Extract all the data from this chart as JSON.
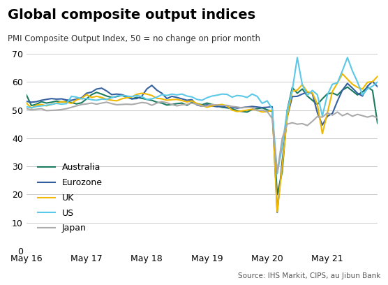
{
  "title": "Global composite output indices",
  "subtitle": "PMI Composite Output Index, 50 = no change on prior month",
  "source": "Source: IHS Markit, CIPS, au Jibun Bank",
  "ylabel": "",
  "xlabel": "",
  "ylim": [
    0,
    70
  ],
  "yticks": [
    0,
    10,
    20,
    30,
    40,
    50,
    60,
    70
  ],
  "xtick_labels": [
    "May 16",
    "May 17",
    "May 18",
    "May 19",
    "May 20",
    "May 21"
  ],
  "xtick_positions": [
    0,
    12,
    24,
    36,
    48,
    60
  ],
  "colors": {
    "Australia": "#1a7a5e",
    "Eurozone": "#3560a0",
    "UK": "#f0b800",
    "US": "#5bc8e8",
    "Japan": "#aaaaaa"
  },
  "series": {
    "Australia": [
      55.4,
      51.6,
      52.1,
      53.0,
      52.5,
      52.8,
      53.2,
      52.9,
      53.1,
      52.7,
      52.2,
      52.6,
      54.0,
      55.5,
      56.3,
      55.7,
      55.0,
      54.5,
      54.8,
      55.2,
      54.6,
      54.0,
      54.5,
      54.2,
      53.8,
      53.5,
      52.8,
      52.5,
      51.8,
      52.0,
      52.3,
      52.5,
      51.7,
      52.8,
      52.3,
      51.9,
      52.5,
      52.0,
      51.5,
      51.0,
      50.8,
      50.5,
      49.8,
      49.5,
      49.3,
      50.2,
      50.5,
      50.8,
      50.1,
      49.5,
      20.0,
      28.0,
      50.0,
      58.0,
      56.0,
      57.5,
      55.0,
      53.5,
      52.0,
      54.0,
      55.8,
      56.1,
      55.3,
      57.1,
      58.2,
      56.8,
      55.4,
      56.5,
      58.2,
      57.0,
      45.3
    ],
    "Eurozone": [
      53.1,
      52.8,
      53.0,
      53.5,
      53.8,
      54.1,
      53.9,
      54.0,
      53.6,
      53.5,
      53.9,
      54.4,
      56.0,
      56.4,
      57.5,
      57.8,
      56.8,
      55.5,
      55.7,
      55.5,
      54.9,
      54.0,
      54.1,
      54.9,
      57.5,
      58.8,
      57.1,
      56.0,
      54.1,
      54.9,
      54.5,
      54.0,
      53.5,
      53.7,
      51.8,
      51.4,
      51.9,
      51.5,
      51.2,
      51.4,
      50.9,
      51.0,
      50.7,
      50.9,
      51.1,
      51.3,
      51.1,
      50.9,
      51.0,
      51.2,
      13.6,
      31.9,
      47.5,
      54.8,
      54.9,
      55.7,
      56.4,
      55.9,
      49.1,
      44.7,
      47.8,
      48.8,
      53.2,
      57.1,
      59.5,
      57.8,
      56.0,
      55.0,
      58.5,
      60.2,
      58.3
    ],
    "UK": [
      52.5,
      50.7,
      51.8,
      52.0,
      51.5,
      52.0,
      52.5,
      53.0,
      52.8,
      52.4,
      53.6,
      54.2,
      55.5,
      54.5,
      54.9,
      54.5,
      53.8,
      53.5,
      53.3,
      54.0,
      54.4,
      54.7,
      55.6,
      56.0,
      55.7,
      55.2,
      54.2,
      54.0,
      53.5,
      53.7,
      53.8,
      53.4,
      52.9,
      53.3,
      52.3,
      51.7,
      51.0,
      51.5,
      51.8,
      52.0,
      51.5,
      50.0,
      49.5,
      49.7,
      50.0,
      50.3,
      50.0,
      49.3,
      49.5,
      49.9,
      13.8,
      30.0,
      47.6,
      56.7,
      57.1,
      59.1,
      56.5,
      56.1,
      52.1,
      41.6,
      49.0,
      56.6,
      59.6,
      62.9,
      61.0,
      59.2,
      58.1,
      57.5,
      59.9,
      60.1,
      62.0
    ],
    "US": [
      51.2,
      50.8,
      51.3,
      51.5,
      51.7,
      52.0,
      52.4,
      52.1,
      52.3,
      54.9,
      54.6,
      54.0,
      54.1,
      53.7,
      53.5,
      53.9,
      53.8,
      54.4,
      55.0,
      55.2,
      55.0,
      54.8,
      55.2,
      54.8,
      53.8,
      54.0,
      54.6,
      55.5,
      55.2,
      55.7,
      55.4,
      55.7,
      55.0,
      54.7,
      53.8,
      53.5,
      54.4,
      55.0,
      55.3,
      55.7,
      55.6,
      54.6,
      55.2,
      55.0,
      54.5,
      55.7,
      54.9,
      52.4,
      53.3,
      50.5,
      27.4,
      37.0,
      50.0,
      57.0,
      68.7,
      59.0,
      55.3,
      57.0,
      55.5,
      47.9,
      55.4,
      59.2,
      59.7,
      64.0,
      68.7,
      63.9,
      60.0,
      55.4,
      57.6,
      58.5,
      60.0
    ],
    "Japan": [
      50.5,
      50.1,
      50.3,
      50.5,
      49.8,
      49.9,
      50.0,
      50.2,
      50.5,
      51.0,
      51.5,
      52.0,
      52.2,
      52.5,
      52.1,
      52.5,
      52.8,
      52.3,
      51.9,
      52.0,
      52.1,
      52.0,
      52.3,
      52.7,
      52.5,
      51.7,
      52.5,
      53.0,
      52.6,
      52.0,
      51.5,
      51.9,
      52.0,
      52.5,
      52.0,
      51.4,
      51.5,
      52.0,
      51.8,
      51.6,
      51.7,
      51.3,
      51.1,
      50.8,
      51.0,
      50.9,
      49.8,
      50.0,
      49.5,
      47.0,
      27.8,
      40.0,
      45.0,
      45.5,
      45.0,
      45.2,
      44.5,
      46.0,
      47.7,
      47.5,
      49.0,
      48.2,
      49.3,
      48.0,
      48.8,
      47.8,
      48.5,
      48.0,
      47.5,
      48.0,
      47.2
    ]
  }
}
